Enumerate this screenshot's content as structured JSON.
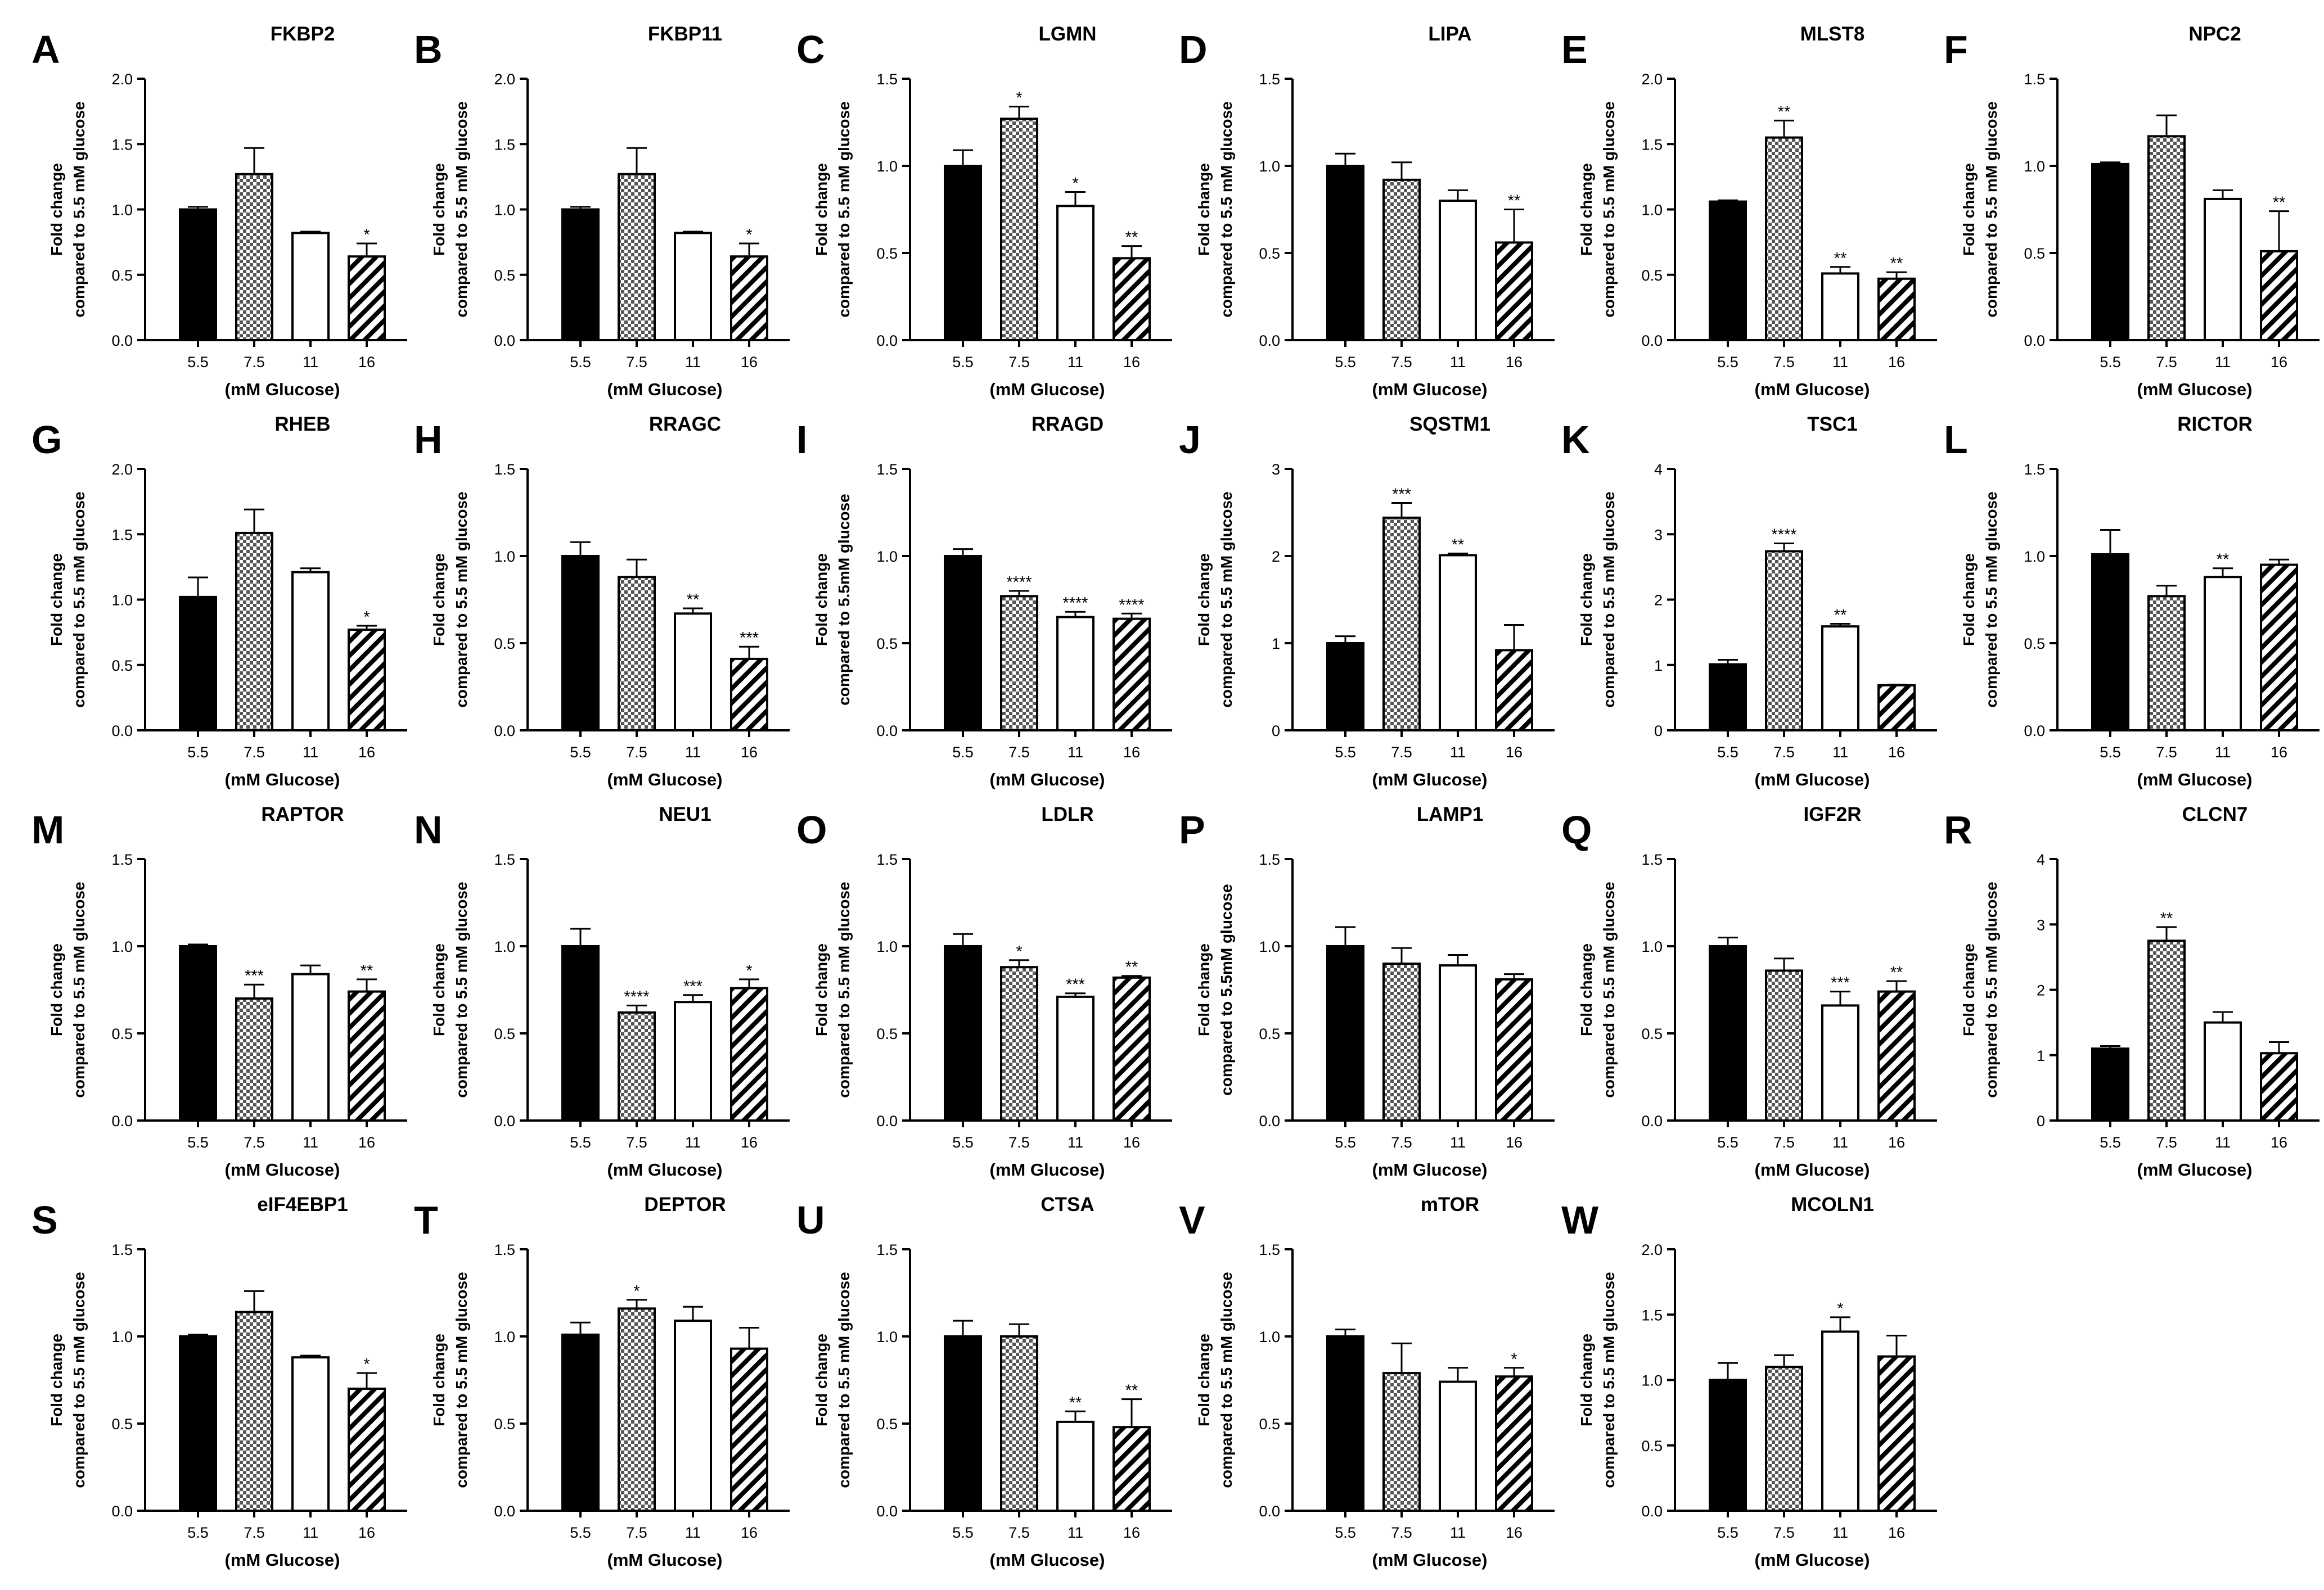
{
  "figure": {
    "xlabel": "(mM Glucose)",
    "colors": {
      "bar_1": "#000000",
      "bar_2": "#888888",
      "bar_3": "#ffffff",
      "bar_4": "#ffffff",
      "stroke": "#000000"
    },
    "patterns": [
      "solid-black",
      "checkerboard",
      "white",
      "diagonal-hatch"
    ]
  },
  "chart_data": [
    {
      "letter": "A",
      "title": "FKBP2",
      "type": "bar",
      "categories": [
        "5.5",
        "7.5",
        "11",
        "16"
      ],
      "ylim": [
        0,
        2.0
      ],
      "yticks": [
        "0.0",
        "0.5",
        "1.0",
        "1.5",
        "2.0"
      ],
      "ylabel": [
        "Fold change",
        "compared to 5.5 mM glucose"
      ],
      "values": [
        1.0,
        1.27,
        0.82,
        0.64
      ],
      "errors": [
        0.02,
        0.2,
        0.01,
        0.1
      ],
      "sig": [
        "",
        "",
        "",
        "*"
      ]
    },
    {
      "letter": "B",
      "title": "FKBP11",
      "type": "bar",
      "categories": [
        "5.5",
        "7.5",
        "11",
        "16"
      ],
      "ylim": [
        0,
        2.0
      ],
      "yticks": [
        "0.0",
        "0.5",
        "1.0",
        "1.5",
        "2.0"
      ],
      "ylabel": [
        "Fold change",
        "compared to 5.5 mM glucose"
      ],
      "values": [
        1.0,
        1.27,
        0.82,
        0.64
      ],
      "errors": [
        0.02,
        0.2,
        0.01,
        0.1
      ],
      "sig": [
        "",
        "",
        "",
        "*"
      ]
    },
    {
      "letter": "C",
      "title": "LGMN",
      "type": "bar",
      "categories": [
        "5.5",
        "7.5",
        "11",
        "16"
      ],
      "ylim": [
        0,
        1.5
      ],
      "yticks": [
        "0.0",
        "0.5",
        "1.0",
        "1.5"
      ],
      "ylabel": [
        "Fold change",
        "compared to 5.5 mM glucose"
      ],
      "values": [
        1.0,
        1.27,
        0.77,
        0.47
      ],
      "errors": [
        0.09,
        0.07,
        0.08,
        0.07
      ],
      "sig": [
        "",
        "*",
        "*",
        "**"
      ]
    },
    {
      "letter": "D",
      "title": "LIPA",
      "type": "bar",
      "categories": [
        "5.5",
        "7.5",
        "11",
        "16"
      ],
      "ylim": [
        0,
        1.5
      ],
      "yticks": [
        "0.0",
        "0.5",
        "1.0",
        "1.5"
      ],
      "ylabel": [
        "Fold change",
        "compared to 5.5 mM glucose"
      ],
      "values": [
        1.0,
        0.92,
        0.8,
        0.56
      ],
      "errors": [
        0.07,
        0.1,
        0.06,
        0.19
      ],
      "sig": [
        "",
        "",
        "",
        "**"
      ]
    },
    {
      "letter": "E",
      "title": "MLST8",
      "type": "bar",
      "categories": [
        "5.5",
        "7.5",
        "11",
        "16"
      ],
      "ylim": [
        0,
        2.0
      ],
      "yticks": [
        "0.0",
        "0.5",
        "1.0",
        "1.5",
        "2.0"
      ],
      "ylabel": [
        "Fold change",
        "compared to 5.5 mM glucose"
      ],
      "values": [
        1.06,
        1.55,
        0.51,
        0.47
      ],
      "errors": [
        0.01,
        0.13,
        0.05,
        0.05
      ],
      "sig": [
        "",
        "**",
        "**",
        "**"
      ]
    },
    {
      "letter": "F",
      "title": "NPC2",
      "type": "bar",
      "categories": [
        "5.5",
        "7.5",
        "11",
        "16"
      ],
      "ylim": [
        0,
        1.5
      ],
      "yticks": [
        "0.0",
        "0.5",
        "1.0",
        "1.5"
      ],
      "ylabel": [
        "Fold change",
        "compared to 5.5 mM glucose"
      ],
      "values": [
        1.01,
        1.17,
        0.81,
        0.51
      ],
      "errors": [
        0.01,
        0.12,
        0.05,
        0.23
      ],
      "sig": [
        "",
        "",
        "",
        "**"
      ]
    },
    {
      "letter": "G",
      "title": "RHEB",
      "type": "bar",
      "categories": [
        "5.5",
        "7.5",
        "11",
        "16"
      ],
      "ylim": [
        0,
        2.0
      ],
      "yticks": [
        "0.0",
        "0.5",
        "1.0",
        "1.5",
        "2.0"
      ],
      "ylabel": [
        "Fold change",
        "compared to 5.5 mM glucose"
      ],
      "values": [
        1.02,
        1.51,
        1.21,
        0.77
      ],
      "errors": [
        0.15,
        0.18,
        0.03,
        0.03
      ],
      "sig": [
        "",
        "",
        "",
        "*"
      ]
    },
    {
      "letter": "H",
      "title": "RRAGC",
      "type": "bar",
      "categories": [
        "5.5",
        "7.5",
        "11",
        "16"
      ],
      "ylim": [
        0,
        1.5
      ],
      "yticks": [
        "0.0",
        "0.5",
        "1.0",
        "1.5"
      ],
      "ylabel": [
        "Fold change",
        "compared to 5.5 mM glucose"
      ],
      "values": [
        1.0,
        0.88,
        0.67,
        0.41
      ],
      "errors": [
        0.08,
        0.1,
        0.03,
        0.07
      ],
      "sig": [
        "",
        "",
        "**",
        "***"
      ]
    },
    {
      "letter": "I",
      "title": "RRAGD",
      "type": "bar",
      "categories": [
        "5.5",
        "7.5",
        "11",
        "16"
      ],
      "ylim": [
        0,
        1.5
      ],
      "yticks": [
        "0.0",
        "0.5",
        "1.0",
        "1.5"
      ],
      "ylabel": [
        "Fold change",
        "compared to 5.5mM glucose"
      ],
      "values": [
        1.0,
        0.77,
        0.65,
        0.64
      ],
      "errors": [
        0.04,
        0.03,
        0.03,
        0.03
      ],
      "sig": [
        "",
        "****",
        "****",
        "****"
      ]
    },
    {
      "letter": "J",
      "title": "SQSTM1",
      "type": "bar",
      "categories": [
        "5.5",
        "7.5",
        "11",
        "16"
      ],
      "ylim": [
        0,
        3
      ],
      "yticks": [
        "0",
        "1",
        "2",
        "3"
      ],
      "ylabel": [
        "Fold change",
        "compared to 5.5 mM glucose"
      ],
      "values": [
        1.0,
        2.44,
        2.01,
        0.92
      ],
      "errors": [
        0.08,
        0.17,
        0.02,
        0.29
      ],
      "sig": [
        "",
        "***",
        "**",
        ""
      ]
    },
    {
      "letter": "K",
      "title": "TSC1",
      "type": "bar",
      "categories": [
        "5.5",
        "7.5",
        "11",
        "16"
      ],
      "ylim": [
        0,
        4
      ],
      "yticks": [
        "0",
        "1",
        "2",
        "3",
        "4"
      ],
      "ylabel": [
        "Fold change",
        "compared to 5.5 mM glucose"
      ],
      "values": [
        1.01,
        2.74,
        1.59,
        0.69
      ],
      "errors": [
        0.07,
        0.12,
        0.04,
        0.01
      ],
      "sig": [
        "",
        "****",
        "**",
        ""
      ]
    },
    {
      "letter": "L",
      "title": "RICTOR",
      "type": "bar",
      "categories": [
        "5.5",
        "7.5",
        "11",
        "16"
      ],
      "ylim": [
        0,
        1.5
      ],
      "yticks": [
        "0.0",
        "0.5",
        "1.0",
        "1.5"
      ],
      "ylabel": [
        "Fold change",
        "compared to 5.5 mM glucose"
      ],
      "values": [
        1.01,
        0.77,
        0.88,
        0.95
      ],
      "errors": [
        0.14,
        0.06,
        0.05,
        0.03
      ],
      "sig": [
        "",
        "",
        "**",
        ""
      ]
    },
    {
      "letter": "M",
      "title": "RAPTOR",
      "type": "bar",
      "categories": [
        "5.5",
        "7.5",
        "11",
        "16"
      ],
      "ylim": [
        0,
        1.5
      ],
      "yticks": [
        "0.0",
        "0.5",
        "1.0",
        "1.5"
      ],
      "ylabel": [
        "Fold change",
        "compared to 5.5 mM glucose"
      ],
      "values": [
        1.0,
        0.7,
        0.84,
        0.74
      ],
      "errors": [
        0.01,
        0.08,
        0.05,
        0.07
      ],
      "sig": [
        "",
        "***",
        "",
        "**"
      ]
    },
    {
      "letter": "N",
      "title": "NEU1",
      "type": "bar",
      "categories": [
        "5.5",
        "7.5",
        "11",
        "16"
      ],
      "ylim": [
        0,
        1.5
      ],
      "yticks": [
        "0.0",
        "0.5",
        "1.0",
        "1.5"
      ],
      "ylabel": [
        "Fold change",
        "compared to 5.5 mM glucose"
      ],
      "values": [
        1.0,
        0.62,
        0.68,
        0.76
      ],
      "errors": [
        0.1,
        0.04,
        0.04,
        0.05
      ],
      "sig": [
        "",
        "****",
        "***",
        "*"
      ]
    },
    {
      "letter": "O",
      "title": "LDLR",
      "type": "bar",
      "categories": [
        "5.5",
        "7.5",
        "11",
        "16"
      ],
      "ylim": [
        0,
        1.5
      ],
      "yticks": [
        "0.0",
        "0.5",
        "1.0",
        "1.5"
      ],
      "ylabel": [
        "Fold change",
        "compared to 5.5 mM glucose"
      ],
      "values": [
        1.0,
        0.88,
        0.71,
        0.82
      ],
      "errors": [
        0.07,
        0.04,
        0.02,
        0.01
      ],
      "sig": [
        "",
        "*",
        "***",
        "**"
      ]
    },
    {
      "letter": "P",
      "title": "LAMP1",
      "type": "bar",
      "categories": [
        "5.5",
        "7.5",
        "11",
        "16"
      ],
      "ylim": [
        0,
        1.5
      ],
      "yticks": [
        "0.0",
        "0.5",
        "1.0",
        "1.5"
      ],
      "ylabel": [
        "Fold change",
        "compared to 5.5mM glucose"
      ],
      "values": [
        1.0,
        0.9,
        0.89,
        0.81
      ],
      "errors": [
        0.11,
        0.09,
        0.06,
        0.03
      ],
      "sig": [
        "",
        "",
        "",
        ""
      ]
    },
    {
      "letter": "Q",
      "title": "IGF2R",
      "type": "bar",
      "categories": [
        "5.5",
        "7.5",
        "11",
        "16"
      ],
      "ylim": [
        0,
        1.5
      ],
      "yticks": [
        "0.0",
        "0.5",
        "1.0",
        "1.5"
      ],
      "ylabel": [
        "Fold change",
        "compared to 5.5 mM glucose"
      ],
      "values": [
        1.0,
        0.86,
        0.66,
        0.74
      ],
      "errors": [
        0.05,
        0.07,
        0.08,
        0.06
      ],
      "sig": [
        "",
        "",
        "***",
        "**"
      ]
    },
    {
      "letter": "R",
      "title": "CLCN7",
      "type": "bar",
      "categories": [
        "5.5",
        "7.5",
        "11",
        "16"
      ],
      "ylim": [
        0,
        4
      ],
      "yticks": [
        "0",
        "1",
        "2",
        "3",
        "4"
      ],
      "ylabel": [
        "Fold change",
        "compared to 5.5 mM glucose"
      ],
      "values": [
        1.1,
        2.75,
        1.5,
        1.03
      ],
      "errors": [
        0.04,
        0.21,
        0.16,
        0.17
      ],
      "sig": [
        "",
        "**",
        "",
        ""
      ]
    },
    {
      "letter": "S",
      "title": "eIF4EBP1",
      "type": "bar",
      "categories": [
        "5.5",
        "7.5",
        "11",
        "16"
      ],
      "ylim": [
        0,
        1.5
      ],
      "yticks": [
        "0.0",
        "0.5",
        "1.0",
        "1.5"
      ],
      "ylabel": [
        "Fold change",
        "compared to 5.5 mM glucose"
      ],
      "values": [
        1.0,
        1.14,
        0.88,
        0.7
      ],
      "errors": [
        0.01,
        0.12,
        0.01,
        0.09
      ],
      "sig": [
        "",
        "",
        "",
        "*"
      ]
    },
    {
      "letter": "T",
      "title": "DEPTOR",
      "type": "bar",
      "categories": [
        "5.5",
        "7.5",
        "11",
        "16"
      ],
      "ylim": [
        0,
        1.5
      ],
      "yticks": [
        "0.0",
        "0.5",
        "1.0",
        "1.5"
      ],
      "ylabel": [
        "Fold change",
        "compared to 5.5 mM glucose"
      ],
      "values": [
        1.01,
        1.16,
        1.09,
        0.93
      ],
      "errors": [
        0.07,
        0.05,
        0.08,
        0.12
      ],
      "sig": [
        "",
        "*",
        "",
        ""
      ]
    },
    {
      "letter": "U",
      "title": "CTSA",
      "type": "bar",
      "categories": [
        "5.5",
        "7.5",
        "11",
        "16"
      ],
      "ylim": [
        0,
        1.5
      ],
      "yticks": [
        "0.0",
        "0.5",
        "1.0",
        "1.5"
      ],
      "ylabel": [
        "Fold change",
        "compared to 5.5 mM glucose"
      ],
      "values": [
        1.0,
        1.0,
        0.51,
        0.48
      ],
      "errors": [
        0.09,
        0.07,
        0.06,
        0.16
      ],
      "sig": [
        "",
        "",
        "**",
        "**"
      ]
    },
    {
      "letter": "V",
      "title": "mTOR",
      "type": "bar",
      "categories": [
        "5.5",
        "7.5",
        "11",
        "16"
      ],
      "ylim": [
        0,
        1.5
      ],
      "yticks": [
        "0.0",
        "0.5",
        "1.0",
        "1.5"
      ],
      "ylabel": [
        "Fold change",
        "compared to 5.5 mM glucose"
      ],
      "values": [
        1.0,
        0.79,
        0.74,
        0.77
      ],
      "errors": [
        0.04,
        0.17,
        0.08,
        0.05
      ],
      "sig": [
        "",
        "",
        "",
        "*"
      ]
    },
    {
      "letter": "W",
      "title": "MCOLN1",
      "type": "bar",
      "categories": [
        "5.5",
        "7.5",
        "11",
        "16"
      ],
      "ylim": [
        0,
        2.0
      ],
      "yticks": [
        "0.0",
        "0.5",
        "1.0",
        "1.5",
        "2.0"
      ],
      "ylabel": [
        "Fold change",
        "compared to 5.5 mM glucose"
      ],
      "values": [
        1.0,
        1.1,
        1.37,
        1.18
      ],
      "errors": [
        0.13,
        0.09,
        0.11,
        0.16
      ],
      "sig": [
        "",
        "",
        "*",
        ""
      ]
    }
  ]
}
